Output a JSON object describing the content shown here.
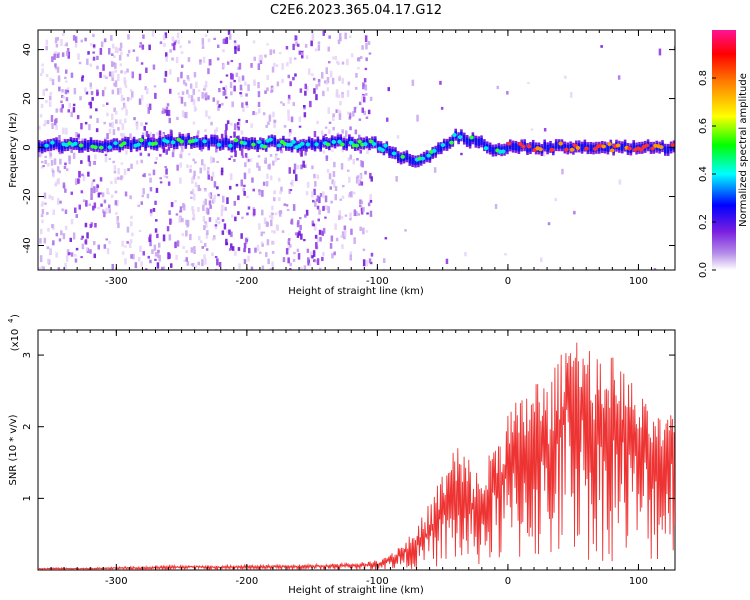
{
  "title": "C2E6.2023.365.04.17.G12",
  "chart_data": [
    {
      "type": "heatmap",
      "xlabel": "Height of straight line (km)",
      "ylabel": "Frequency (Hz)",
      "xlim": [
        -360,
        128
      ],
      "ylim": [
        -50,
        48
      ],
      "xticks": [
        -300,
        -200,
        -100,
        0,
        100
      ],
      "yticks": [
        -40,
        -20,
        0,
        20,
        40
      ],
      "ridge": {
        "x": [
          -360,
          -300,
          -270,
          -250,
          -230,
          -200,
          -180,
          -160,
          -130,
          -110,
          -100,
          -90,
          -80,
          -70,
          -60,
          -50,
          -40,
          -30,
          -20,
          -10,
          0,
          20,
          60,
          128
        ],
        "freq": [
          1,
          1,
          2,
          3,
          2,
          1,
          2,
          1,
          2,
          2,
          1,
          -2,
          -4,
          -5,
          -3,
          1,
          5,
          3,
          2,
          -1,
          0,
          0,
          0,
          0
        ]
      },
      "colorbar": {
        "label": "Normalized spectral amplitude",
        "range": [
          0.0,
          1.0
        ],
        "ticks": [
          "0.0",
          "0.2",
          "0.4",
          "0.6",
          "0.8"
        ],
        "colors": [
          "#ffffff",
          "#8a2be2",
          "#0000ff",
          "#00ffff",
          "#00ff00",
          "#ffff00",
          "#ff8000",
          "#ff0000",
          "#ff1493"
        ]
      },
      "grid": false
    },
    {
      "type": "line",
      "xlabel": "Height of straight line (km)",
      "ylabel": "SNR (10 * v/v)",
      "yscale_label": "(x10",
      "yscale_exp": "4",
      "xlim": [
        -360,
        128
      ],
      "ylim": [
        0,
        3.35
      ],
      "xticks": [
        -300,
        -200,
        -100,
        0,
        100
      ],
      "yticks": [
        1,
        2,
        3
      ],
      "color": "#ee3333",
      "series": [
        {
          "x": [
            -360,
            -340,
            -320,
            -300,
            -280,
            -260,
            -240,
            -220,
            -200,
            -180,
            -160,
            -140,
            -120,
            -110,
            -100,
            -90,
            -80,
            -70,
            -60,
            -50,
            -40,
            -30,
            -20,
            -10,
            0,
            10,
            20,
            30,
            40,
            50,
            60,
            70,
            80,
            90,
            100,
            110,
            120,
            128
          ],
          "y": [
            0.02,
            0.02,
            0.02,
            0.03,
            0.03,
            0.04,
            0.05,
            0.04,
            0.05,
            0.05,
            0.05,
            0.06,
            0.07,
            0.07,
            0.09,
            0.15,
            0.25,
            0.35,
            0.55,
            0.85,
            1.05,
            0.9,
            0.9,
            1.2,
            1.5,
            1.6,
            1.9,
            1.7,
            2.1,
            2.9,
            2.2,
            2.0,
            2.3,
            2.0,
            1.8,
            1.7,
            1.6,
            1.9
          ],
          "peak_y": [
            0.03,
            0.03,
            0.03,
            0.04,
            0.05,
            0.06,
            0.06,
            0.06,
            0.07,
            0.07,
            0.07,
            0.09,
            0.1,
            0.11,
            0.14,
            0.25,
            0.4,
            0.6,
            0.95,
            1.4,
            1.85,
            1.6,
            1.3,
            1.9,
            2.3,
            2.4,
            2.8,
            2.6,
            3.0,
            3.3,
            3.25,
            2.9,
            3.0,
            2.8,
            2.5,
            2.2,
            2.1,
            2.2
          ]
        }
      ],
      "grid": false
    }
  ]
}
